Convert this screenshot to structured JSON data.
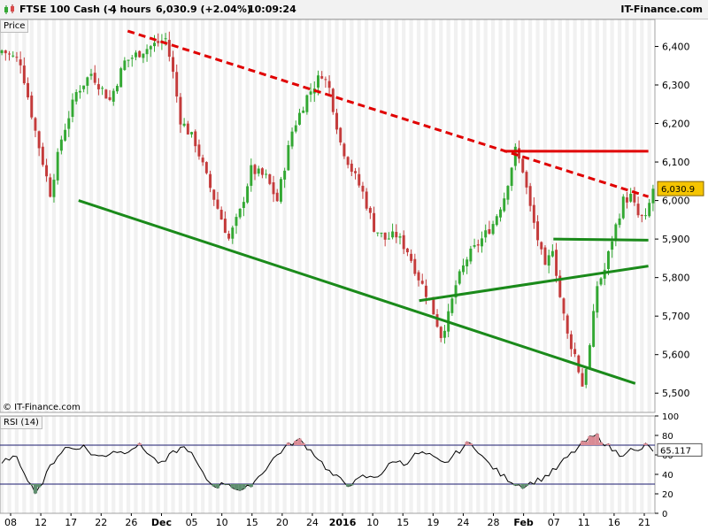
{
  "header": {
    "instrument": "FTSE 100 Cash (-)",
    "timeframe": "4 hours",
    "last_change": "6,030.9 (+2.04%)",
    "time": "10:09:24",
    "brand": "IT-Finance.com"
  },
  "price_panel": {
    "label": "Price",
    "copyright": "© IT-Finance.com"
  },
  "rsi_panel": {
    "label": "RSI (14)",
    "value_label": "65.117"
  },
  "last_price_label": "6,030.9",
  "colors": {
    "up_candle": "#33a833",
    "down_candle": "#c43b3b",
    "support": "#1a8a1a",
    "resistance": "#e00000",
    "rsi_line": "#000000",
    "rsi_band": "#1a1a6e",
    "rsi_overbought_fill": "#d98a94",
    "rsi_oversold_fill": "#5e8e6e",
    "last_price_box": "#f5c400"
  },
  "chart_data": [
    {
      "type": "candlestick",
      "title": "FTSE 100 Cash (-) 4 hours",
      "ylabel": "Price",
      "ylim": [
        5450,
        6470
      ],
      "yticks": [
        "6,400",
        "6,300",
        "6,200",
        "6,100",
        "6,000",
        "5,900",
        "5,800",
        "5,700",
        "5,600",
        "5,500"
      ],
      "ytick_values": [
        6400,
        6300,
        6200,
        6100,
        6000,
        5900,
        5800,
        5700,
        5600,
        5500
      ],
      "x_labels": [
        "08",
        "12",
        "17",
        "22",
        "26",
        "Dec",
        "05",
        "10",
        "15",
        "20",
        "24",
        "2016",
        "10",
        "15",
        "19",
        "24",
        "28",
        "Feb",
        "07",
        "11",
        "16",
        "21"
      ],
      "bar_count": 176,
      "close_path": [
        [
          0,
          6390
        ],
        [
          5,
          6360
        ],
        [
          9,
          6180
        ],
        [
          13,
          6020
        ],
        [
          16,
          6160
        ],
        [
          20,
          6280
        ],
        [
          24,
          6330
        ],
        [
          29,
          6260
        ],
        [
          33,
          6360
        ],
        [
          38,
          6390
        ],
        [
          44,
          6420
        ],
        [
          46,
          6330
        ],
        [
          48,
          6210
        ],
        [
          52,
          6150
        ],
        [
          55,
          6060
        ],
        [
          58,
          5980
        ],
        [
          61,
          5900
        ],
        [
          64,
          5970
        ],
        [
          67,
          6080
        ],
        [
          71,
          6060
        ],
        [
          74,
          6000
        ],
        [
          78,
          6180
        ],
        [
          82,
          6270
        ],
        [
          86,
          6330
        ],
        [
          88,
          6290
        ],
        [
          91,
          6150
        ],
        [
          94,
          6080
        ],
        [
          97,
          6020
        ],
        [
          100,
          5930
        ],
        [
          103,
          5900
        ],
        [
          106,
          5910
        ],
        [
          109,
          5870
        ],
        [
          112,
          5800
        ],
        [
          115,
          5740
        ],
        [
          118,
          5650
        ],
        [
          120,
          5700
        ],
        [
          122,
          5780
        ],
        [
          125,
          5850
        ],
        [
          129,
          5900
        ],
        [
          132,
          5940
        ],
        [
          135,
          6010
        ],
        [
          138,
          6130
        ],
        [
          140,
          6080
        ],
        [
          142,
          5980
        ],
        [
          144,
          5900
        ],
        [
          146,
          5820
        ],
        [
          148,
          5880
        ],
        [
          150,
          5750
        ],
        [
          152,
          5650
        ],
        [
          154,
          5600
        ],
        [
          156,
          5520
        ],
        [
          158,
          5620
        ],
        [
          160,
          5780
        ],
        [
          162,
          5820
        ],
        [
          164,
          5900
        ],
        [
          167,
          6000
        ],
        [
          169,
          6010
        ],
        [
          171,
          5960
        ],
        [
          173,
          5950
        ],
        [
          175,
          6030.9
        ]
      ],
      "last_price": 6030.9,
      "trendlines": [
        {
          "from": [
            0.12,
            6000
          ],
          "to": [
            0.97,
            5525
          ],
          "style": "solid",
          "color_key": "support"
        },
        {
          "from": [
            0.195,
            6440
          ],
          "to": [
            0.99,
            6010
          ],
          "style": "dashed",
          "color_key": "resistance"
        },
        {
          "from": [
            0.64,
            5740
          ],
          "to": [
            0.99,
            5830
          ],
          "style": "solid",
          "color_key": "support"
        },
        {
          "from": [
            0.845,
            5900
          ],
          "to": [
            0.99,
            5897
          ],
          "style": "solid",
          "color_key": "support"
        },
        {
          "from": [
            0.77,
            6128
          ],
          "to": [
            0.99,
            6128
          ],
          "style": "solid",
          "color_key": "resistance"
        }
      ]
    },
    {
      "type": "line",
      "title": "RSI (14)",
      "ylim": [
        0,
        100
      ],
      "yticks": [
        "100",
        "80",
        "60",
        "40",
        "20",
        "0"
      ],
      "ytick_values": [
        100,
        80,
        60,
        40,
        20,
        0
      ],
      "bands": [
        70,
        30
      ],
      "last_value": 65.117,
      "values": [
        50,
        58,
        55,
        40,
        22,
        30,
        48,
        60,
        68,
        66,
        70,
        62,
        58,
        60,
        65,
        62,
        67,
        70,
        64,
        55,
        50,
        60,
        66,
        68,
        55,
        40,
        30,
        28,
        32,
        26,
        22,
        30,
        38,
        48,
        58,
        66,
        72,
        75,
        68,
        60,
        50,
        40,
        35,
        30,
        32,
        38,
        36,
        40,
        48,
        55,
        50,
        58,
        62,
        60,
        55,
        50,
        58,
        65,
        72,
        68,
        55,
        48,
        40,
        35,
        30,
        28,
        32,
        35,
        40,
        46,
        55,
        62,
        70,
        76,
        80,
        72,
        65,
        60,
        66,
        62,
        70,
        65.117
      ]
    }
  ]
}
